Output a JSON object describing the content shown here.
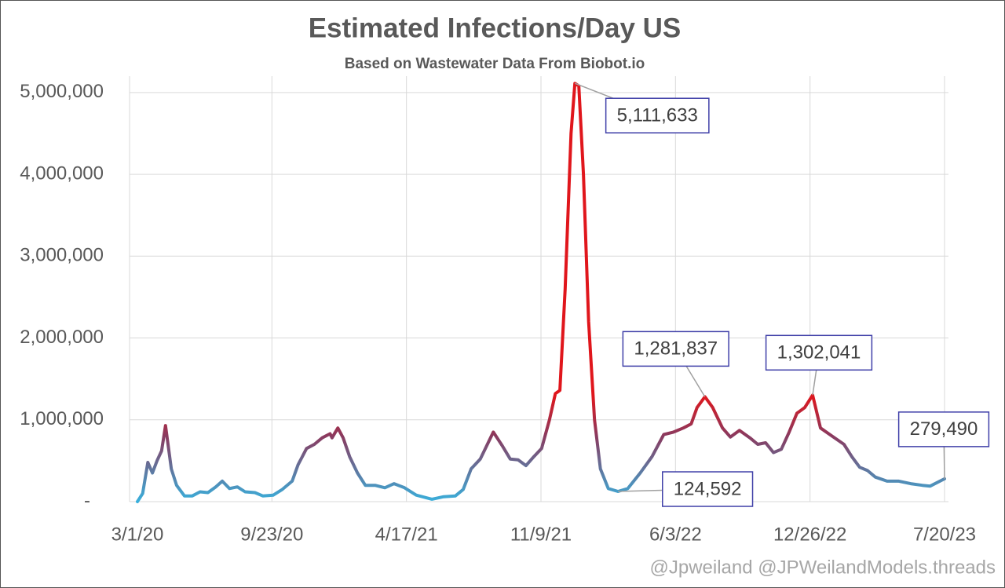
{
  "chart_data": {
    "type": "line",
    "title": "Estimated Infections/Day US",
    "subtitle": "Based on Wastewater Data From Biobot.io",
    "credit": "@Jpweiland @JPWeilandModels.threads",
    "x": [
      "3/1/20",
      "3/9/20",
      "3/17/20",
      "3/24/20",
      "3/31/20",
      "4/7/20",
      "4/13/20",
      "4/22/20",
      "4/30/20",
      "5/12/20",
      "5/24/20",
      "6/5/20",
      "6/17/20",
      "6/29/20",
      "7/9/20",
      "7/20/20",
      "8/1/20",
      "8/13/20",
      "8/28/20",
      "9/9/20",
      "9/25/20",
      "10/9/20",
      "10/24/20",
      "11/2/20",
      "11/15/20",
      "11/27/20",
      "12/9/20",
      "12/21/20",
      "12/24/20",
      "1/2/21",
      "1/10/21",
      "1/20/21",
      "2/1/21",
      "2/13/21",
      "2/28/21",
      "3/15/21",
      "3/29/21",
      "4/14/21",
      "5/2/21",
      "5/26/21",
      "6/13/21",
      "7/1/21",
      "7/13/21",
      "7/25/21",
      "8/8/21",
      "8/28/21",
      "9/11/21",
      "9/23/21",
      "10/5/21",
      "10/17/21",
      "10/29/21",
      "11/10/21",
      "11/22/21",
      "12/1/21",
      "12/8/21",
      "12/16/21",
      "12/25/21",
      "12/31/21",
      "1/6/22",
      "1/13/22",
      "1/21/22",
      "1/30/22",
      "2/8/22",
      "2/20/22",
      "3/7/22",
      "3/22/22",
      "4/10/22",
      "4/28/22",
      "5/16/22",
      "5/31/22",
      "6/15/22",
      "6/27/22",
      "7/6/22",
      "7/18/22",
      "7/30/22",
      "8/14/22",
      "8/26/22",
      "9/9/22",
      "9/25/22",
      "10/7/22",
      "10/19/22",
      "10/31/22",
      "11/12/22",
      "11/24/22",
      "12/6/22",
      "12/18/22",
      "12/30/22",
      "1/11/23",
      "1/29/23",
      "2/16/23",
      "2/28/23",
      "3/12/23",
      "3/24/23",
      "4/5/23",
      "4/23/23",
      "5/11/23",
      "5/29/23",
      "6/16/23",
      "6/28/23",
      "7/20/23"
    ],
    "series": [
      {
        "values": [
          0,
          100000,
          480000,
          350000,
          500000,
          620000,
          930000,
          400000,
          200000,
          70000,
          70000,
          120000,
          110000,
          180000,
          250000,
          160000,
          180000,
          120000,
          110000,
          70000,
          80000,
          150000,
          250000,
          450000,
          650000,
          700000,
          780000,
          830000,
          780000,
          900000,
          780000,
          550000,
          350000,
          200000,
          200000,
          170000,
          220000,
          170000,
          80000,
          30000,
          60000,
          70000,
          150000,
          400000,
          520000,
          850000,
          680000,
          520000,
          510000,
          440000,
          550000,
          650000,
          1000000,
          1320000,
          1360000,
          2600000,
          4500000,
          5111633,
          5080000,
          4000000,
          2200000,
          1000000,
          400000,
          160000,
          124592,
          160000,
          350000,
          550000,
          820000,
          850000,
          900000,
          950000,
          1150000,
          1281837,
          1150000,
          900000,
          790000,
          870000,
          780000,
          700000,
          720000,
          600000,
          640000,
          850000,
          1080000,
          1150000,
          1302041,
          900000,
          800000,
          700000,
          550000,
          420000,
          380000,
          300000,
          250000,
          250000,
          220000,
          200000,
          190000,
          279490
        ],
        "value_labels": [
          null,
          null,
          null,
          null,
          null,
          null,
          null,
          null,
          null,
          null,
          null,
          null,
          null,
          null,
          null,
          null,
          null,
          null,
          null,
          null,
          null,
          null,
          null,
          null,
          null,
          null,
          null,
          null,
          null,
          null,
          null,
          null,
          null,
          null,
          null,
          null,
          null,
          null,
          null,
          null,
          null,
          null,
          null,
          null,
          null,
          null,
          null,
          null,
          null,
          null,
          null,
          null,
          null,
          null,
          null,
          null,
          null,
          "5,111,633",
          null,
          null,
          null,
          null,
          null,
          null,
          "124,592",
          null,
          null,
          null,
          null,
          null,
          null,
          null,
          null,
          "1,281,837",
          null,
          null,
          null,
          null,
          null,
          null,
          null,
          null,
          null,
          null,
          null,
          null,
          "1,302,041",
          null,
          null,
          null,
          null,
          null,
          null,
          null,
          null,
          null,
          null,
          null,
          null,
          "279,490"
        ]
      }
    ],
    "color_stops": [
      {
        "value": 0,
        "color": "#39b0dc"
      },
      {
        "value": 800000,
        "color": "#8a3a5f"
      },
      {
        "value": 1300000,
        "color": "#e0161c"
      }
    ],
    "xlim": [
      "3/1/20",
      "7/20/23"
    ],
    "xticks": [
      "3/1/20",
      "9/23/20",
      "4/17/21",
      "11/9/21",
      "6/3/22",
      "12/26/22",
      "7/20/23"
    ],
    "ylim": [
      0,
      5200000
    ],
    "yticks": [
      {
        "value": 0,
        "label": "-"
      },
      {
        "value": 1000000,
        "label": "1,000,000"
      },
      {
        "value": 2000000,
        "label": "2,000,000"
      },
      {
        "value": 3000000,
        "label": "3,000,000"
      },
      {
        "value": 4000000,
        "label": "4,000,000"
      },
      {
        "value": 5000000,
        "label": "5,000,000"
      }
    ],
    "grid": true,
    "value_label_box_color": "#3f3fa8"
  }
}
